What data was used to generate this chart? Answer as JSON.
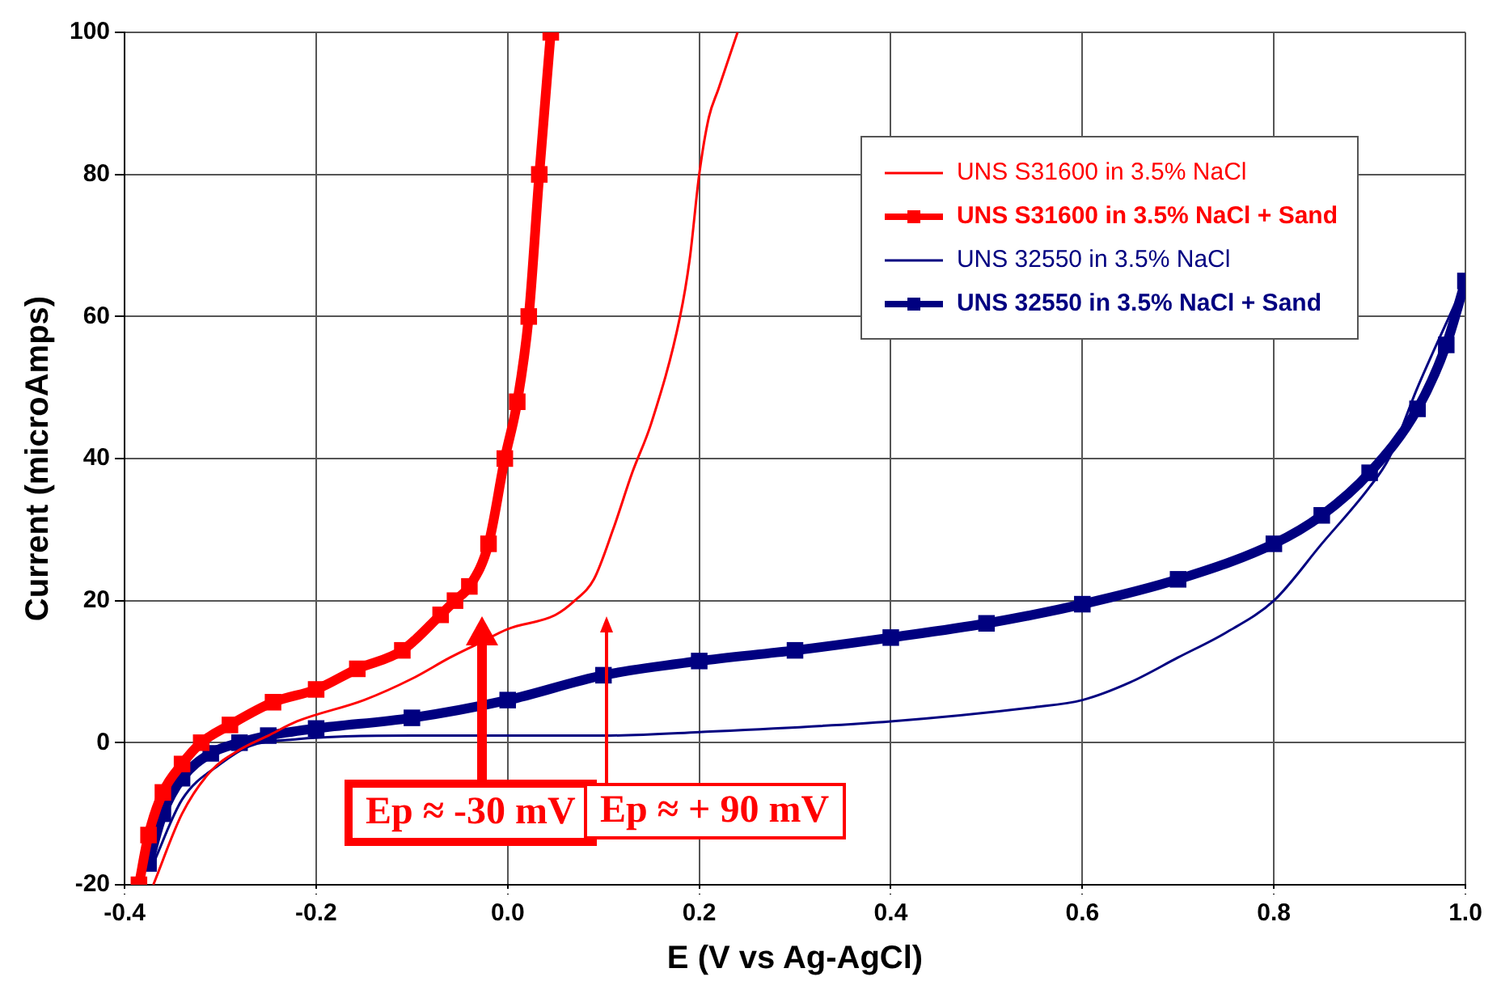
{
  "chart_data": {
    "type": "line",
    "xlabel": "E (V vs Ag-AgCl)",
    "ylabel": "Current (microAmps)",
    "xlim": [
      -0.4,
      1.0
    ],
    "xticks": [
      -0.4,
      -0.2,
      {
        "value": 0,
        "label": "0.0"
      },
      0.2,
      0.4,
      0.6,
      0.8,
      {
        "value": 1,
        "label": "1.0"
      }
    ],
    "ylim": [
      -20,
      100
    ],
    "yticks": [
      -20,
      0,
      20,
      40,
      60,
      80,
      100
    ],
    "grid": true,
    "legend": "top right",
    "series": [
      {
        "name": "UNS S31600 in 3.5% NaCl",
        "color": "#ff0000",
        "marker": "none",
        "x": [
          -0.37,
          -0.34,
          -0.31,
          -0.28,
          -0.25,
          -0.22,
          -0.15,
          -0.1,
          -0.06,
          -0.03,
          0.0,
          0.05,
          0.07,
          0.09,
          0.11,
          0.13,
          0.15,
          0.18,
          0.19,
          0.2,
          0.21,
          0.22,
          0.24
        ],
        "values": [
          -20,
          -10,
          -4,
          -1,
          1,
          3,
          6,
          9,
          12,
          14,
          16,
          18,
          20,
          23,
          30,
          38,
          45,
          60,
          68,
          80,
          88,
          92,
          100
        ]
      },
      {
        "name": "UNS S31600 in 3.5% NaCl + Sand",
        "color": "#ff0000",
        "marker": "square",
        "x": [
          -0.385,
          -0.375,
          -0.36,
          -0.34,
          -0.32,
          -0.29,
          -0.245,
          -0.2,
          -0.157,
          -0.11,
          -0.07,
          -0.055,
          -0.04,
          -0.02,
          -0.003,
          0.01,
          0.022,
          0.033,
          0.045
        ],
        "values": [
          -20,
          -13,
          -7,
          -3,
          0,
          2.5,
          5.7,
          7.5,
          10.4,
          13,
          18,
          20,
          22,
          28,
          40,
          48,
          60,
          80,
          100
        ]
      },
      {
        "name": "UNS 32550 in 3.5% NaCl",
        "color": "#000080",
        "marker": "none",
        "x": [
          -0.37,
          -0.34,
          -0.3,
          -0.27,
          -0.22,
          -0.1,
          0.1,
          0.2,
          0.4,
          0.55,
          0.6,
          0.65,
          0.7,
          0.75,
          0.8,
          0.85,
          0.9,
          0.92,
          0.95,
          1.0
        ],
        "values": [
          -17,
          -8,
          -3,
          -0.5,
          0.5,
          1,
          1,
          1.5,
          3,
          5,
          6,
          8.5,
          12,
          15.5,
          20,
          28,
          36,
          40,
          50,
          65
        ]
      },
      {
        "name": "UNS 32550 in 3.5% NaCl + Sand",
        "color": "#000080",
        "marker": "square",
        "x": [
          -0.375,
          -0.36,
          -0.34,
          -0.31,
          -0.28,
          -0.25,
          -0.2,
          -0.1,
          0.0,
          0.1,
          0.2,
          0.3,
          0.4,
          0.5,
          0.6,
          0.7,
          0.8,
          0.85,
          0.9,
          0.95,
          0.98,
          1.0
        ],
        "values": [
          -17,
          -10,
          -5,
          -1.5,
          0,
          1,
          2,
          3.5,
          6,
          9.5,
          11.5,
          13,
          14.8,
          16.8,
          19.5,
          23,
          28,
          32,
          38,
          47,
          56,
          65
        ]
      }
    ],
    "annotations": [
      "Ep ≈ -30 mV",
      "Ep ≈ + 90 mV"
    ]
  }
}
